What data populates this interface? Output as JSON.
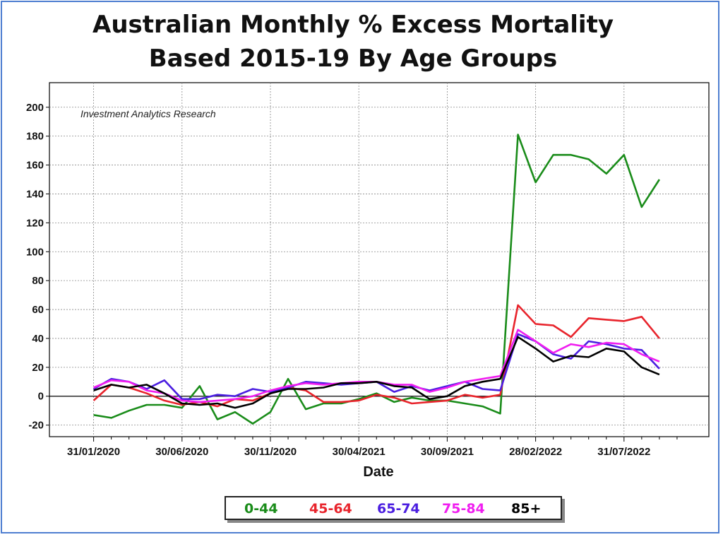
{
  "colors": {
    "frame_border": "#4f7fd1",
    "grid": "#888888",
    "axis": "#000000"
  },
  "chart_data": {
    "type": "line",
    "title": "Australian Monthly % Excess Mortality",
    "subtitle": "Based 2015-19 By Age Groups",
    "xlabel": "Date",
    "ylabel": "",
    "annotation": "Investment Analytics Research",
    "ylim": [
      -28,
      217
    ],
    "yticks": [
      -20,
      0,
      20,
      40,
      60,
      80,
      100,
      120,
      140,
      160,
      180,
      200
    ],
    "x_tick_labels": [
      "31/01/2020",
      "30/06/2020",
      "30/11/2020",
      "30/04/2021",
      "30/09/2021",
      "28/02/2022",
      "31/07/2022"
    ],
    "x_tick_indices": [
      0,
      5,
      10,
      15,
      20,
      25,
      30
    ],
    "x_range_indices": [
      -2.5,
      34.8
    ],
    "grid": true,
    "legend_position": "bottom",
    "x": [
      "31/01/2020",
      "29/02/2020",
      "31/03/2020",
      "30/04/2020",
      "31/05/2020",
      "30/06/2020",
      "31/07/2020",
      "31/08/2020",
      "30/09/2020",
      "31/10/2020",
      "30/11/2020",
      "31/12/2020",
      "31/01/2021",
      "28/02/2021",
      "31/03/2021",
      "30/04/2021",
      "31/05/2021",
      "30/06/2021",
      "31/07/2021",
      "31/08/2021",
      "30/09/2021",
      "31/10/2021",
      "30/11/2021",
      "31/12/2021",
      "31/01/2022",
      "28/02/2022",
      "31/03/2022",
      "30/04/2022",
      "31/05/2022",
      "30/06/2022",
      "31/07/2022",
      "31/08/2022",
      "30/09/2022",
      "31/10/2022"
    ],
    "series": [
      {
        "name": "0-44",
        "color": "#1a8c1a",
        "values": [
          -13,
          -15,
          -10,
          -6,
          -6,
          -8,
          7,
          -16,
          -11,
          -19,
          -11,
          12,
          -9,
          -5,
          -5,
          -2,
          2,
          -4,
          -1,
          -3,
          -3,
          -5,
          -7,
          -12,
          181,
          148,
          167,
          167,
          164,
          154,
          167,
          131,
          150,
          null
        ]
      },
      {
        "name": "45-64",
        "color": "#e8242c",
        "values": [
          -3,
          8,
          6,
          2,
          -3,
          -6,
          -4,
          -7,
          -2,
          -3,
          2,
          6,
          4,
          -4,
          -4,
          -3,
          1,
          -1,
          -5,
          -4,
          -3,
          1,
          -1,
          1,
          63,
          50,
          49,
          41,
          54,
          53,
          52,
          55,
          40,
          null
        ]
      },
      {
        "name": "65-74",
        "color": "#4b1ee0",
        "values": [
          5,
          12,
          10,
          5,
          11,
          -2,
          -2,
          1,
          0,
          5,
          3,
          6,
          10,
          9,
          8,
          9,
          10,
          3,
          7,
          4,
          7,
          10,
          5,
          4,
          43,
          38,
          29,
          26,
          38,
          36,
          33,
          32,
          19,
          null
        ]
      },
      {
        "name": "75-84",
        "color": "#f01ef0",
        "values": [
          6,
          11,
          10,
          4,
          2,
          -3,
          -4,
          -3,
          -2,
          0,
          4,
          7,
          9,
          8,
          9,
          10,
          10,
          8,
          8,
          3,
          6,
          10,
          12,
          14,
          46,
          38,
          30,
          36,
          34,
          37,
          36,
          29,
          24,
          null
        ]
      },
      {
        "name": "85+",
        "color": "#000000",
        "values": [
          4,
          8,
          6,
          8,
          2,
          -5,
          -6,
          -5,
          -8,
          -5,
          2,
          5,
          5,
          6,
          9,
          9,
          10,
          7,
          6,
          -2,
          0,
          7,
          10,
          12,
          41,
          33,
          24,
          28,
          27,
          33,
          31,
          20,
          15,
          null
        ]
      }
    ]
  }
}
